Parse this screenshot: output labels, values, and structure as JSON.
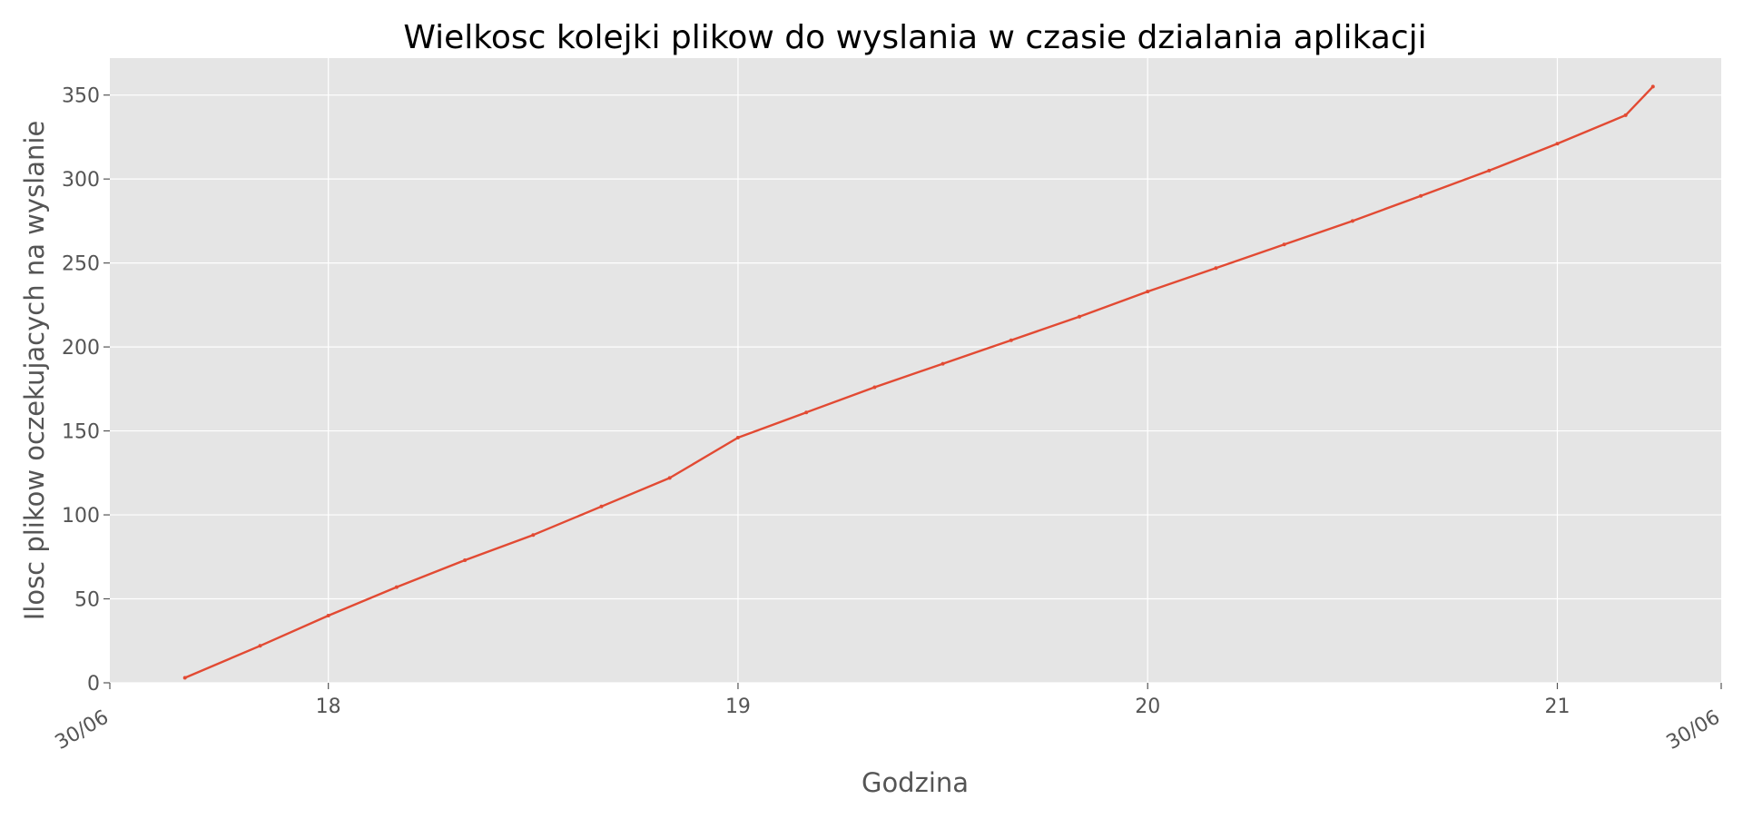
{
  "chart_data": {
    "type": "line",
    "title": "Wielkosc kolejki plikow do wyslania w czasie dzialania aplikacji",
    "xlabel": "Godzina",
    "ylabel": "Ilosc plikow oczekujacych na wyslanie",
    "xlim": [
      "30/06 17:28",
      "30/06 21:24"
    ],
    "ylim": [
      0,
      372
    ],
    "x_ticks": [
      {
        "value": "30/06 18:00",
        "label": "18"
      },
      {
        "value": "30/06 19:00",
        "label": "19"
      },
      {
        "value": "30/06 20:00",
        "label": "20"
      },
      {
        "value": "30/06 21:00",
        "label": "21"
      }
    ],
    "x_edge_labels": [
      "30/06",
      "30/06"
    ],
    "y_ticks": [
      0,
      50,
      100,
      150,
      200,
      250,
      300,
      350
    ],
    "grid": true,
    "colors": {
      "line": "#E24A33",
      "plot_background": "#E5E5E5",
      "grid": "#FFFFFF",
      "tick_text": "#555555"
    },
    "series": [
      {
        "x": [
          "30/06 17:39",
          "30/06 17:50",
          "30/06 18:00",
          "30/06 18:10",
          "30/06 18:20",
          "30/06 18:30",
          "30/06 18:40",
          "30/06 18:50",
          "30/06 19:00",
          "30/06 19:10",
          "30/06 19:20",
          "30/06 19:30",
          "30/06 19:40",
          "30/06 19:50",
          "30/06 20:00",
          "30/06 20:10",
          "30/06 20:20",
          "30/06 20:30",
          "30/06 20:40",
          "30/06 20:50",
          "30/06 21:00",
          "30/06 21:10",
          "30/06 21:14"
        ],
        "y": [
          3,
          22,
          40,
          57,
          73,
          88,
          105,
          122,
          146,
          161,
          176,
          190,
          204,
          218,
          233,
          247,
          261,
          275,
          290,
          305,
          321,
          338,
          355
        ]
      }
    ]
  }
}
